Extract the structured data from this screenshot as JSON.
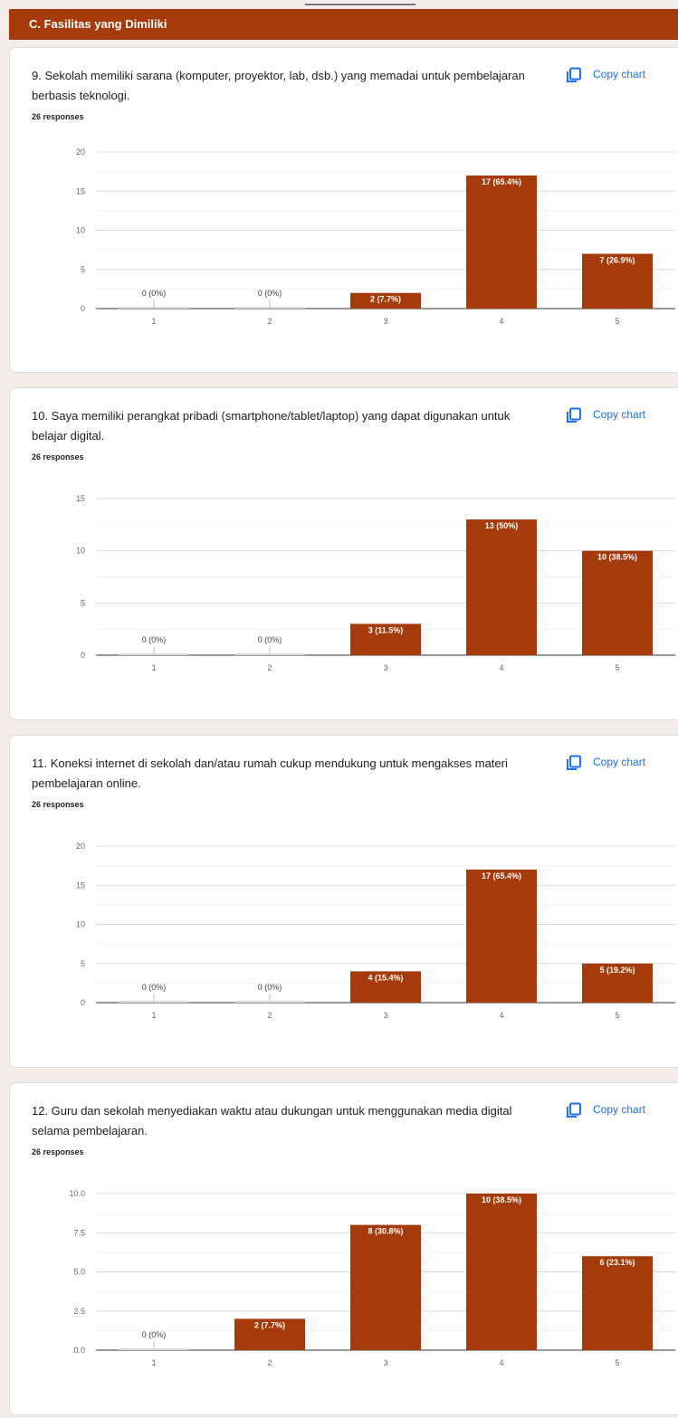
{
  "section": {
    "title": "C. Fasilitas yang Dimiliki"
  },
  "copy_label": "Copy chart",
  "colors": {
    "bar": "#a53a0a",
    "header": "#a53a0a",
    "link": "#1a73e8"
  },
  "questions": [
    {
      "title": "9.  Sekolah memiliki sarana (komputer, proyektor, lab, dsb.) yang memadai untuk pembelajaran berbasis teknologi.",
      "responses": "26 responses"
    },
    {
      "title": "10.  Saya memiliki perangkat pribadi (smartphone/tablet/laptop) yang dapat digunakan untuk belajar digital.",
      "responses": "26 responses"
    },
    {
      "title": "11.  Koneksi internet di sekolah dan/atau rumah cukup mendukung untuk mengakses materi pembelajaran online.",
      "responses": "26 responses"
    },
    {
      "title": "12.  Guru dan sekolah menyediakan waktu atau dukungan untuk menggunakan media digital selama pembelajaran.",
      "responses": "26 responses"
    }
  ],
  "chart_data": [
    {
      "type": "bar",
      "title": "9.  Sekolah memiliki sarana (komputer, proyektor, lab, dsb.) yang memadai untuk pembelajaran berbasis teknologi.",
      "categories": [
        "1",
        "2",
        "3",
        "4",
        "5"
      ],
      "values": [
        0,
        0,
        2,
        17,
        7
      ],
      "data_labels": [
        "0 (0%)",
        "0 (0%)",
        "2 (7.7%)",
        "17 (65.4%)",
        "7 (26.9%)"
      ],
      "yticks": [
        "0",
        "5",
        "10",
        "15",
        "20"
      ],
      "ylim": [
        0,
        20
      ],
      "grid": true
    },
    {
      "type": "bar",
      "title": "10.  Saya memiliki perangkat pribadi (smartphone/tablet/laptop) yang dapat digunakan untuk belajar digital.",
      "categories": [
        "1",
        "2",
        "3",
        "4",
        "5"
      ],
      "values": [
        0,
        0,
        3,
        13,
        10
      ],
      "data_labels": [
        "0 (0%)",
        "0 (0%)",
        "3 (11.5%)",
        "13 (50%)",
        "10 (38.5%)"
      ],
      "yticks": [
        "0",
        "5",
        "10",
        "15"
      ],
      "ylim": [
        0,
        15
      ],
      "grid": true
    },
    {
      "type": "bar",
      "title": "11.  Koneksi internet di sekolah dan/atau rumah cukup mendukung untuk mengakses materi pembelajaran online.",
      "categories": [
        "1",
        "2",
        "3",
        "4",
        "5"
      ],
      "values": [
        0,
        0,
        4,
        17,
        5
      ],
      "data_labels": [
        "0 (0%)",
        "0 (0%)",
        "4 (15.4%)",
        "17 (65.4%)",
        "5 (19.2%)"
      ],
      "yticks": [
        "0",
        "5",
        "10",
        "15",
        "20"
      ],
      "ylim": [
        0,
        20
      ],
      "grid": true
    },
    {
      "type": "bar",
      "title": "12.  Guru dan sekolah menyediakan waktu atau dukungan untuk menggunakan media digital selama pembelajaran.",
      "categories": [
        "1",
        "2",
        "3",
        "4",
        "5"
      ],
      "values": [
        0,
        2,
        8,
        10,
        6
      ],
      "data_labels": [
        "0 (0%)",
        "2 (7.7%)",
        "8 (30.8%)",
        "10 (38.5%)",
        "6 (23.1%)"
      ],
      "yticks": [
        "0.0",
        "2.5",
        "5.0",
        "7.5",
        "10.0"
      ],
      "ylim": [
        0,
        10
      ],
      "grid": true
    }
  ]
}
